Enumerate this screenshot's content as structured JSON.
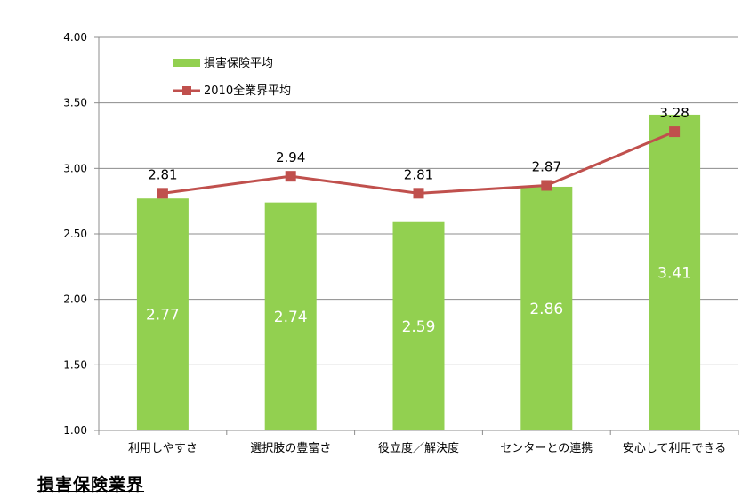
{
  "chart_data": {
    "type": "bar",
    "categories": [
      "利用しやすさ",
      "選択肢の豊富さ",
      "役立度／解決度",
      "センターとの連携",
      "安心して利用できる"
    ],
    "series": [
      {
        "name": "損害保険平均",
        "kind": "bar",
        "color": "#92d050",
        "values": [
          2.77,
          2.74,
          2.59,
          2.86,
          3.41
        ]
      },
      {
        "name": "2010全業界平均",
        "kind": "line",
        "color": "#c0504d",
        "values": [
          2.81,
          2.94,
          2.81,
          2.87,
          3.28
        ]
      }
    ],
    "yticks": [
      "1.00",
      "1.50",
      "2.00",
      "2.50",
      "3.00",
      "3.50",
      "4.00"
    ],
    "ylim": [
      1.0,
      4.0
    ],
    "grid": true,
    "legend_position": "top-left",
    "title": ""
  },
  "footer": {
    "title": "損害保険業界"
  }
}
